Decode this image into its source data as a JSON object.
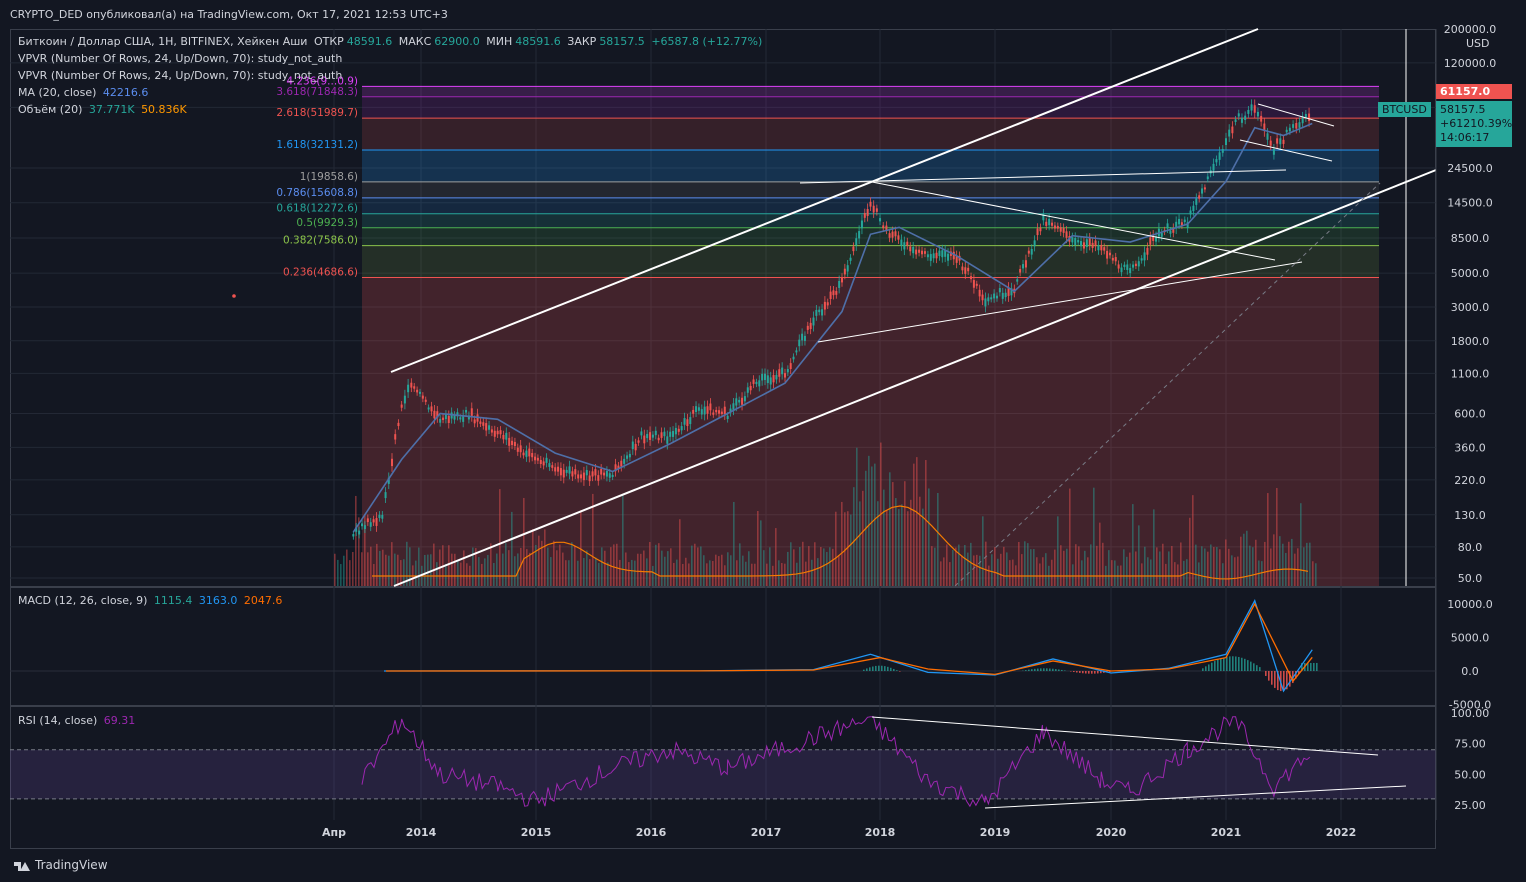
{
  "header": {
    "publisher": "CRYPTO_DED опубликовал(а) на TradingView.com, Окт 17, 2021 12:53 UTC+3"
  },
  "legend": {
    "main": {
      "symbol": "Биткоин / Доллар США, 1Н, BITFINEX, Хейкен Аши",
      "open_label": "ОТКР",
      "open": "48591.6",
      "high_label": "МАКС",
      "high": "62900.0",
      "low_label": "МИН",
      "low": "48591.6",
      "close_label": "ЗАКР",
      "close": "58157.5",
      "change": "+6587.8 (+12.77%)"
    },
    "vpvr1": "VPVR (Number Of Rows, 24, Up/Down, 70): study_not_auth",
    "vpvr2": "VPVR (Number Of Rows, 24, Up/Down, 70): study_not_auth",
    "ma_label": "MA (20, close)",
    "ma_value": "42216.6",
    "vol_label": "Объём (20)",
    "vol_value1": "37.771K",
    "vol_value2": "50.836K",
    "macd_label": "MACD (12, 26, close, 9)",
    "macd_v1": "1115.4",
    "macd_v2": "3163.0",
    "macd_v3": "2047.6",
    "rsi_label": "RSI (14, close)",
    "rsi_value": "69.31"
  },
  "price_tags": {
    "usd": "USD",
    "current": "61157.0",
    "symbol": "BTCUSD",
    "last": "58157.5",
    "last_change": "+61210.39%",
    "countdown": "14:06:17"
  },
  "colors": {
    "bg": "#131722",
    "up": "#26a69a",
    "down": "#ef5350",
    "ma": "#4e6fa8",
    "vol_ma": "#f57c00",
    "macd": "#2196f3",
    "signal": "#ff6d00",
    "rsi": "#9c27b0"
  },
  "footer": {
    "brand": "TradingView"
  },
  "chart_data": [
    {
      "type": "line",
      "title": "Биткоин / Доллар США, 1Н, BITFINEX, Хейкен Аши",
      "y_scale": "log",
      "y_ticks": [
        "200000.0",
        "120000.0",
        "61157.0",
        "24500.0",
        "14500.0",
        "8500.0",
        "5000.0",
        "3000.0",
        "1800.0",
        "1100.0",
        "600.0",
        "360.0",
        "220.0",
        "130.0",
        "80.0",
        "50.0"
      ],
      "x_ticks": [
        "Апр",
        "2014",
        "2015",
        "2016",
        "2017",
        "2018",
        "2019",
        "2020",
        "2021",
        "2022"
      ],
      "fib_levels": [
        {
          "ratio": "4.236",
          "label": "4.236(9...0.9)"
        },
        {
          "ratio": "3.618",
          "label": "3.618(71848.3)"
        },
        {
          "ratio": "2.618",
          "label": "2.618(51989.7)"
        },
        {
          "ratio": "1.618",
          "label": "1.618(32131.2)"
        },
        {
          "ratio": "1",
          "label": "1(19858.6)"
        },
        {
          "ratio": "0.786",
          "label": "0.786(15608.8)"
        },
        {
          "ratio": "0.618",
          "label": "0.618(12272.6)"
        },
        {
          "ratio": "0.5",
          "label": "0.5(9929.3)"
        },
        {
          "ratio": "0.382",
          "label": "0.382(7586.0)"
        },
        {
          "ratio": "0.236",
          "label": "0.236(4686.6)"
        }
      ],
      "series": [
        {
          "name": "BTCUSD",
          "x": [
            "2013-06",
            "2013-09",
            "2013-11",
            "2013-12",
            "2014-03",
            "2014-06",
            "2014-09",
            "2014-12",
            "2015-03",
            "2015-06",
            "2015-09",
            "2015-12",
            "2016-03",
            "2016-06",
            "2016-09",
            "2016-12",
            "2017-03",
            "2017-06",
            "2017-09",
            "2017-12",
            "2018-02",
            "2018-06",
            "2018-09",
            "2018-12",
            "2019-03",
            "2019-06",
            "2019-09",
            "2019-12",
            "2020-03",
            "2020-06",
            "2020-09",
            "2020-12",
            "2021-02",
            "2021-04",
            "2021-06",
            "2021-08",
            "2021-10"
          ],
          "values": [
            100,
            130,
            700,
            900,
            550,
            600,
            450,
            330,
            260,
            240,
            235,
            430,
            420,
            650,
            600,
            960,
            1100,
            2500,
            4300,
            15000,
            9000,
            6500,
            6500,
            3400,
            4000,
            11000,
            8500,
            7200,
            5000,
            9300,
            10800,
            27000,
            50000,
            61000,
            33000,
            45000,
            58157
          ]
        },
        {
          "name": "MA (20, close)",
          "x": [
            "2013-06",
            "2013-11",
            "2014-03",
            "2014-09",
            "2015-03",
            "2015-09",
            "2016-03",
            "2016-09",
            "2017-03",
            "2017-09",
            "2017-12",
            "2018-03",
            "2018-09",
            "2019-03",
            "2019-09",
            "2020-03",
            "2020-09",
            "2021-01",
            "2021-04",
            "2021-07",
            "2021-10"
          ],
          "values": [
            100,
            300,
            600,
            550,
            330,
            250,
            380,
            600,
            950,
            2800,
            9000,
            10000,
            6500,
            3800,
            8800,
            8000,
            10500,
            20000,
            45000,
            40000,
            48000
          ]
        }
      ]
    },
    {
      "type": "line",
      "title": "MACD (12, 26, close, 9)",
      "y_ticks": [
        "10000.0",
        "5000.0",
        "0.0",
        "-5000.0"
      ],
      "series": [
        {
          "name": "MACD",
          "x": [
            "2013-06",
            "2016-06",
            "2017-06",
            "2017-12",
            "2018-06",
            "2019-01",
            "2019-07",
            "2020-01",
            "2020-07",
            "2021-01",
            "2021-04",
            "2021-07",
            "2021-10"
          ],
          "values": [
            0,
            20,
            200,
            2500,
            -200,
            -600,
            1800,
            -300,
            400,
            2500,
            10500,
            -3000,
            3163
          ]
        },
        {
          "name": "Signal",
          "x": [
            "2013-06",
            "2016-06",
            "2017-06",
            "2018-01",
            "2018-06",
            "2019-01",
            "2019-07",
            "2020-01",
            "2020-07",
            "2021-01",
            "2021-04",
            "2021-08",
            "2021-10"
          ],
          "values": [
            0,
            20,
            150,
            2000,
            300,
            -500,
            1500,
            0,
            300,
            2000,
            10000,
            -1500,
            2047.6
          ]
        }
      ]
    },
    {
      "type": "line",
      "title": "RSI (14, close)",
      "y_ticks": [
        "100.00",
        "75.00",
        "50.00",
        "25.00"
      ],
      "series": [
        {
          "name": "RSI",
          "x": [
            "2013-06",
            "2013-11",
            "2014-03",
            "2014-09",
            "2015-01",
            "2015-09",
            "2016-03",
            "2016-09",
            "2017-06",
            "2017-12",
            "2018-06",
            "2018-12",
            "2019-06",
            "2019-12",
            "2020-03",
            "2020-09",
            "2021-02",
            "2021-06",
            "2021-10"
          ],
          "values": [
            45,
            95,
            50,
            40,
            28,
            55,
            70,
            55,
            80,
            95,
            45,
            26,
            85,
            45,
            35,
            70,
            95,
            40,
            69.31
          ]
        }
      ]
    }
  ]
}
